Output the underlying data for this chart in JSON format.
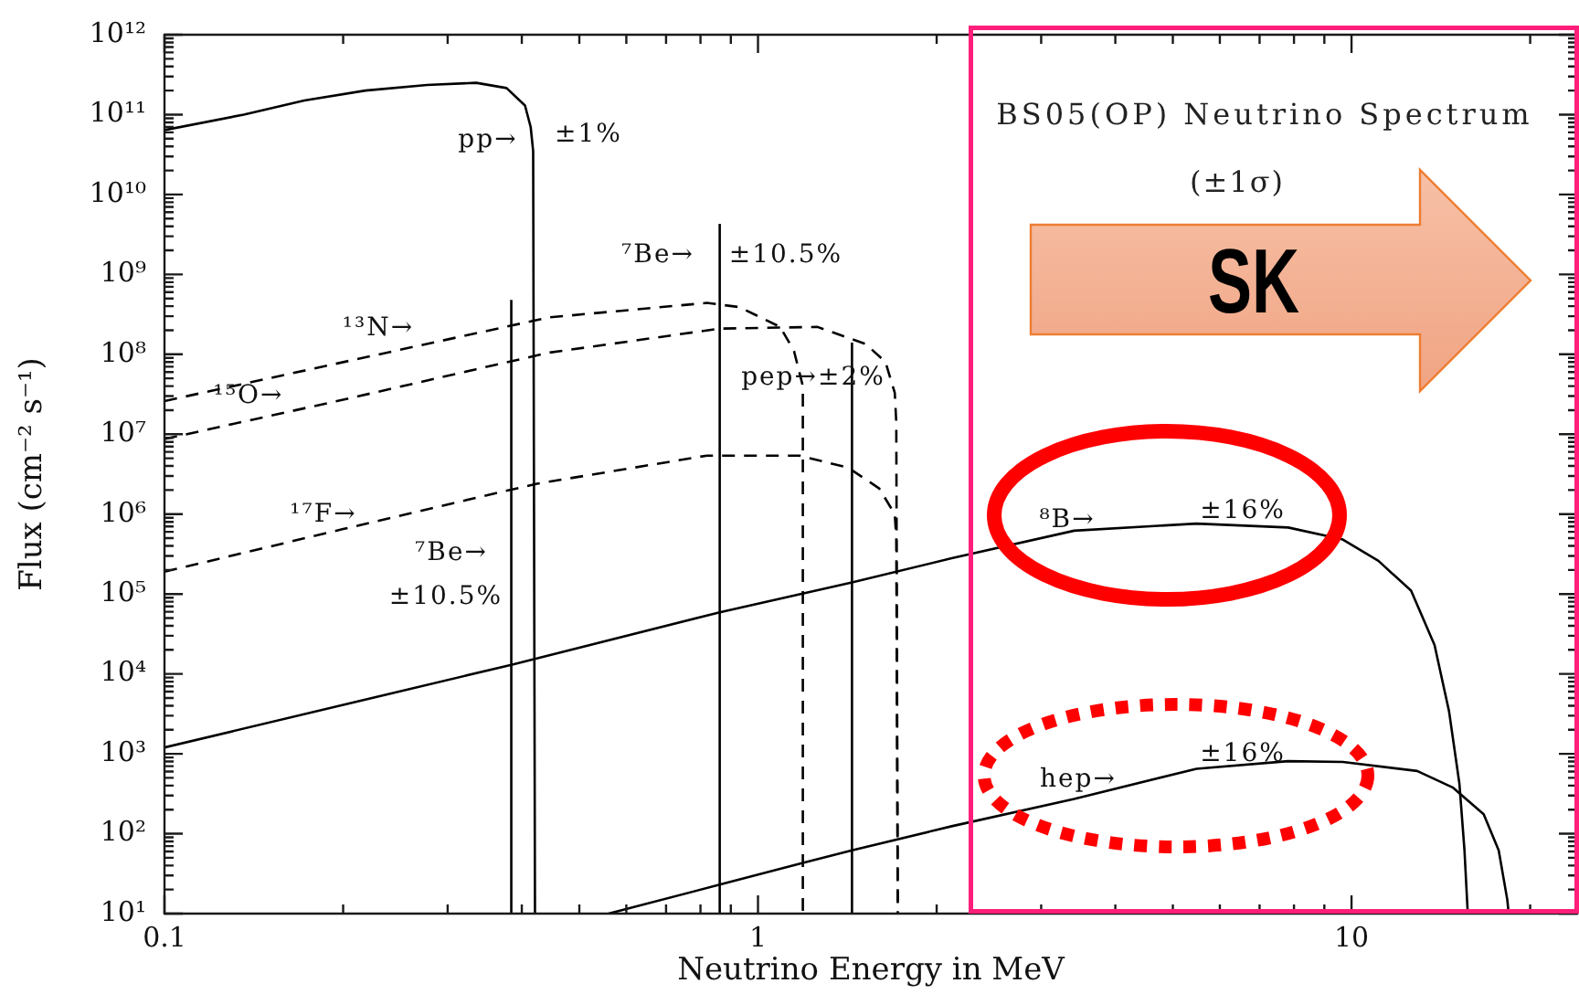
{
  "chart_data": {
    "type": "line",
    "title": "BS05(OP) Neutrino Spectrum",
    "subtitle": "(±1σ)",
    "xlabel": "Neutrino Energy in MeV",
    "ylabel": "Flux (cm⁻² s⁻¹)",
    "log": "xy",
    "marker": "none",
    "line_style": "solid",
    "xlim": [
      0.1,
      24
    ],
    "ylim": [
      10,
      1000000000000.0
    ],
    "xticks": [
      0.1,
      {
        "value": 0.2,
        "label": null
      },
      {
        "value": 0.3,
        "label": null
      },
      {
        "value": 0.4,
        "label": null
      },
      {
        "value": 0.5,
        "label": null
      },
      {
        "value": 0.6,
        "label": null
      },
      {
        "value": 0.7,
        "label": null
      },
      {
        "value": 0.8,
        "label": null
      },
      {
        "value": 0.9,
        "label": null
      },
      1,
      {
        "value": 2,
        "label": null
      },
      {
        "value": 3,
        "label": null
      },
      {
        "value": 4,
        "label": null
      },
      {
        "value": 5,
        "label": null
      },
      {
        "value": 6,
        "label": null
      },
      {
        "value": 7,
        "label": null
      },
      {
        "value": 8,
        "label": null
      },
      {
        "value": 9,
        "label": null
      },
      10,
      {
        "value": 20,
        "label": null
      }
    ],
    "yticks": [
      {
        "value": 10.0,
        "label": "10¹"
      },
      {
        "value": 20.0,
        "label": null
      },
      {
        "value": 30.0,
        "label": null
      },
      {
        "value": 40.0,
        "label": null
      },
      {
        "value": 50.0,
        "label": null
      },
      {
        "value": 60.0,
        "label": null
      },
      {
        "value": 70.0,
        "label": null
      },
      {
        "value": 80.0,
        "label": null
      },
      {
        "value": 90.0,
        "label": null
      },
      {
        "value": 100.0,
        "label": "10²"
      },
      {
        "value": 200.0,
        "label": null
      },
      {
        "value": 300.0,
        "label": null
      },
      {
        "value": 400.0,
        "label": null
      },
      {
        "value": 500.0,
        "label": null
      },
      {
        "value": 600.0,
        "label": null
      },
      {
        "value": 700.0,
        "label": null
      },
      {
        "value": 800.0,
        "label": null
      },
      {
        "value": 900.0,
        "label": null
      },
      {
        "value": 1000.0,
        "label": "10³"
      },
      {
        "value": 2000.0,
        "label": null
      },
      {
        "value": 3000.0,
        "label": null
      },
      {
        "value": 4000.0,
        "label": null
      },
      {
        "value": 5000.0,
        "label": null
      },
      {
        "value": 6000.0,
        "label": null
      },
      {
        "value": 7000.0,
        "label": null
      },
      {
        "value": 8000.0,
        "label": null
      },
      {
        "value": 9000.0,
        "label": null
      },
      {
        "value": 10000.0,
        "label": "10⁴"
      },
      {
        "value": 20000.0,
        "label": null
      },
      {
        "value": 30000.0,
        "label": null
      },
      {
        "value": 40000.0,
        "label": null
      },
      {
        "value": 50000.0,
        "label": null
      },
      {
        "value": 60000.0,
        "label": null
      },
      {
        "value": 70000.0,
        "label": null
      },
      {
        "value": 80000.0,
        "label": null
      },
      {
        "value": 90000.0,
        "label": null
      },
      {
        "value": 100000.0,
        "label": "10⁵"
      },
      {
        "value": 200000.0,
        "label": null
      },
      {
        "value": 300000.0,
        "label": null
      },
      {
        "value": 400000.0,
        "label": null
      },
      {
        "value": 500000.0,
        "label": null
      },
      {
        "value": 600000.0,
        "label": null
      },
      {
        "value": 700000.0,
        "label": null
      },
      {
        "value": 800000.0,
        "label": null
      },
      {
        "value": 900000.0,
        "label": null
      },
      {
        "value": 1000000.0,
        "label": "10⁶"
      },
      {
        "value": 2000000.0,
        "label": null
      },
      {
        "value": 3000000.0,
        "label": null
      },
      {
        "value": 4000000.0,
        "label": null
      },
      {
        "value": 5000000.0,
        "label": null
      },
      {
        "value": 6000000.0,
        "label": null
      },
      {
        "value": 7000000.0,
        "label": null
      },
      {
        "value": 8000000.0,
        "label": null
      },
      {
        "value": 9000000.0,
        "label": null
      },
      {
        "value": 10000000.0,
        "label": "10⁷"
      },
      {
        "value": 20000000.0,
        "label": null
      },
      {
        "value": 30000000.0,
        "label": null
      },
      {
        "value": 40000000.0,
        "label": null
      },
      {
        "value": 50000000.0,
        "label": null
      },
      {
        "value": 60000000.0,
        "label": null
      },
      {
        "value": 70000000.0,
        "label": null
      },
      {
        "value": 80000000.0,
        "label": null
      },
      {
        "value": 90000000.0,
        "label": null
      },
      {
        "value": 100000000.0,
        "label": "10⁸"
      },
      {
        "value": 200000000.0,
        "label": null
      },
      {
        "value": 300000000.0,
        "label": null
      },
      {
        "value": 400000000.0,
        "label": null
      },
      {
        "value": 500000000.0,
        "label": null
      },
      {
        "value": 600000000.0,
        "label": null
      },
      {
        "value": 700000000.0,
        "label": null
      },
      {
        "value": 800000000.0,
        "label": null
      },
      {
        "value": 900000000.0,
        "label": null
      },
      {
        "value": 1000000000.0,
        "label": "10⁹"
      },
      {
        "value": 2000000000.0,
        "label": null
      },
      {
        "value": 3000000000.0,
        "label": null
      },
      {
        "value": 4000000000.0,
        "label": null
      },
      {
        "value": 5000000000.0,
        "label": null
      },
      {
        "value": 6000000000.0,
        "label": null
      },
      {
        "value": 7000000000.0,
        "label": null
      },
      {
        "value": 8000000000.0,
        "label": null
      },
      {
        "value": 9000000000.0,
        "label": null
      },
      {
        "value": 10000000000.0,
        "label": "10¹⁰"
      },
      {
        "value": 20000000000.0,
        "label": null
      },
      {
        "value": 30000000000.0,
        "label": null
      },
      {
        "value": 40000000000.0,
        "label": null
      },
      {
        "value": 50000000000.0,
        "label": null
      },
      {
        "value": 60000000000.0,
        "label": null
      },
      {
        "value": 70000000000.0,
        "label": null
      },
      {
        "value": 80000000000.0,
        "label": null
      },
      {
        "value": 90000000000.0,
        "label": null
      },
      {
        "value": 100000000000.0,
        "label": "10¹¹"
      },
      {
        "value": 200000000000.0,
        "label": null
      },
      {
        "value": 300000000000.0,
        "label": null
      },
      {
        "value": 400000000000.0,
        "label": null
      },
      {
        "value": 500000000000.0,
        "label": null
      },
      {
        "value": 600000000000.0,
        "label": null
      },
      {
        "value": 700000000000.0,
        "label": null
      },
      {
        "value": 800000000000.0,
        "label": null
      },
      {
        "value": 900000000000.0,
        "label": null
      },
      {
        "value": 1000000000000.0,
        "label": "10¹²"
      }
    ],
    "series": [
      {
        "color": "#000000",
        "x": [
          0.1,
          0.136,
          0.172,
          0.218,
          0.277,
          0.335,
          0.377,
          0.405,
          0.414,
          0.418,
          0.421
        ],
        "values": [
          64000000000.0,
          100000000000.0,
          150000000000.0,
          200000000000.0,
          235000000000.0,
          250000000000.0,
          215000000000.0,
          130000000000.0,
          70000000000.0,
          35000000000.0,
          10
        ]
      },
      {
        "color": "#000000",
        "x": [
          0.384,
          0.384
        ],
        "values": [
          10,
          480000000.0
        ]
      },
      {
        "color": "#000000",
        "x": [
          0.862,
          0.862
        ],
        "values": [
          10,
          4300000000.0
        ]
      },
      {
        "color": "#000000",
        "x": [
          1.44,
          1.44
        ],
        "values": [
          10,
          140000000.0
        ]
      },
      {
        "color": "#000000",
        "line_style": "dashed",
        "x": [
          0.1,
          0.264,
          0.445,
          0.82,
          0.93,
          1.09,
          1.15,
          1.19,
          1.19
        ],
        "values": [
          26000000.0,
          125000000.0,
          290000000.0,
          440000000.0,
          390000000.0,
          220000000.0,
          110000000.0,
          40000000.0,
          10
        ]
      },
      {
        "color": "#000000",
        "line_style": "dashed",
        "x": [
          0.1,
          0.2,
          0.335,
          0.445,
          0.863,
          1.26,
          1.52,
          1.64,
          1.7,
          1.71,
          1.72
        ],
        "values": [
          8700000.0,
          27000000.0,
          65000000.0,
          105000000.0,
          210000000.0,
          220000000.0,
          134000000.0,
          80000000.0,
          33000000.0,
          14000000.0,
          10
        ]
      },
      {
        "color": "#000000",
        "line_style": "dashed",
        "x": [
          0.1,
          0.2,
          0.335,
          0.424,
          0.82,
          1.175,
          1.42,
          1.6,
          1.7,
          1.71,
          1.72
        ],
        "values": [
          190000.0,
          650000.0,
          1600000.0,
          2400000.0,
          5400000.0,
          5400000.0,
          3800000.0,
          2100000.0,
          1000000.0,
          500000.0,
          10
        ]
      },
      {
        "color": "#000000",
        "x": [
          0.1,
          0.384,
          0.862,
          1.44,
          2.12,
          3.41,
          5.48,
          7.82,
          9.67,
          11.1,
          12.6,
          13.8,
          14.6,
          15.2,
          15.5,
          15.7
        ],
        "values": [
          1200.0,
          13000.0,
          59000.0,
          140000.0,
          280000.0,
          620000.0,
          760000.0,
          680000.0,
          480000.0,
          260000.0,
          110000.0,
          23000.0,
          3400.0,
          420.0,
          62,
          10
        ]
      },
      {
        "color": "#000000",
        "x": [
          0.56,
          0.862,
          1.19,
          1.44,
          2.12,
          3.41,
          5.48,
          7.82,
          9.67,
          12.9,
          14.8,
          16.7,
          17.7,
          18.3,
          18.4
        ],
        "values": [
          10,
          23,
          43,
          62,
          124,
          272,
          650,
          810,
          790,
          610,
          380,
          175,
          62,
          15,
          10
        ]
      }
    ],
    "annotations": [
      "pp→",
      "±1%",
      "⁷Be→",
      "±10.5%",
      "¹³N→",
      "¹⁵O→",
      "pep→±2%",
      "¹⁷F→",
      "⁷Be→",
      "±10.5%",
      "⁸B→",
      "±16%",
      "hep→",
      "±16%",
      "SK"
    ]
  }
}
